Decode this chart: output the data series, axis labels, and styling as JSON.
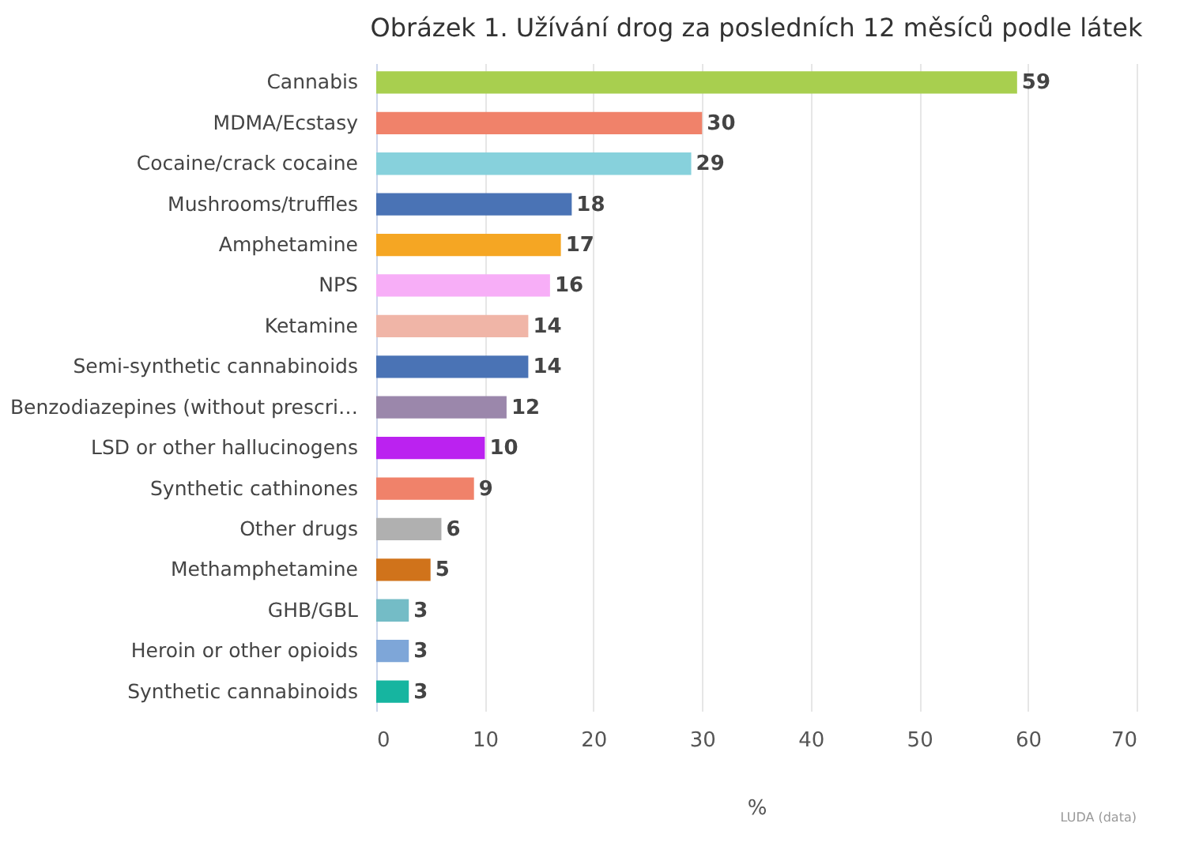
{
  "chart_data": {
    "type": "bar",
    "orientation": "horizontal",
    "title": "Obrázek 1. Užívání drog za posledních 12 měsíců podle látek",
    "xlabel": "%",
    "categories": [
      "Cannabis",
      "MDMA/Ecstasy",
      "Cocaine/crack cocaine",
      "Mushrooms/truffles",
      "Amphetamine",
      "NPS",
      "Ketamine",
      "Semi-synthetic cannabinoids",
      "Benzodiazepines (without prescri…",
      "LSD or other hallucinogens",
      "Synthetic cathinones",
      "Other drugs",
      "Methamphetamine",
      "GHB/GBL",
      "Heroin or other opioids",
      "Synthetic cannabinoids"
    ],
    "values": [
      59,
      30,
      29,
      18,
      17,
      16,
      14,
      14,
      12,
      10,
      9,
      6,
      5,
      3,
      3,
      3
    ],
    "colors": [
      "#a8cf4f",
      "#f0826a",
      "#87d1dc",
      "#4a73b5",
      "#f5a623",
      "#f7aef7",
      "#f0b5a7",
      "#4a73b5",
      "#9b87ab",
      "#bb22f0",
      "#f0826a",
      "#b0b0b0",
      "#d0731b",
      "#74bcc6",
      "#7ea6d8",
      "#16b5a0"
    ],
    "xlim": [
      0,
      70
    ],
    "xticks": [
      0,
      10,
      20,
      30,
      40,
      50,
      60,
      70
    ],
    "grid": "x",
    "data_labels": true,
    "annotations": [
      "LUDA (data)"
    ]
  }
}
